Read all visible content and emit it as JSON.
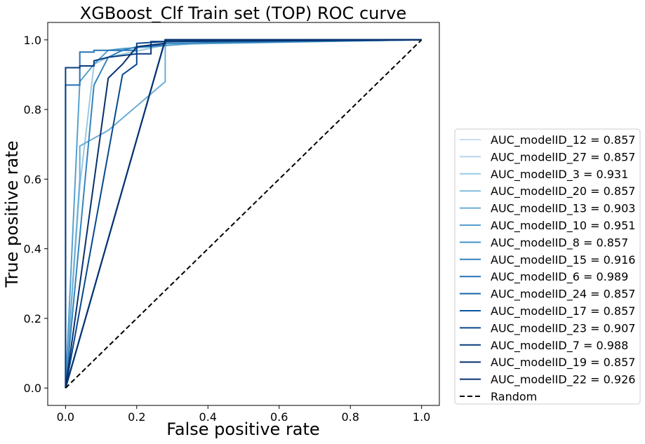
{
  "chart_data": {
    "type": "line",
    "title": "XGBoost_Clf Train set (TOP) ROC curve",
    "xlabel": "False positive rate",
    "ylabel": "True positive rate",
    "xlim": [
      -0.05,
      1.05
    ],
    "ylim": [
      -0.05,
      1.05
    ],
    "x_ticks": [
      "0.0",
      "0.2",
      "0.4",
      "0.6",
      "0.8",
      "1.0"
    ],
    "y_ticks": [
      "0.0",
      "0.2",
      "0.4",
      "0.6",
      "0.8",
      "1.0"
    ],
    "grid": false,
    "legend_position": "right, outside plot",
    "series": [
      {
        "name": "AUC_modelID_12 = 0.857",
        "color": "#c6dbef",
        "points": [
          [
            0,
            0
          ],
          [
            0.28,
            1.0
          ],
          [
            1,
            1
          ]
        ]
      },
      {
        "name": "AUC_modelID_27 = 0.857",
        "color": "#b5d4e9",
        "points": [
          [
            0,
            0
          ],
          [
            0.28,
            1.0
          ],
          [
            1,
            1
          ]
        ]
      },
      {
        "name": "AUC_modelID_3 = 0.931",
        "color": "#9cc9e1",
        "points": [
          [
            0,
            0
          ],
          [
            0.04,
            0.58
          ],
          [
            0.08,
            0.93
          ],
          [
            0.12,
            0.95
          ],
          [
            0.28,
            0.985
          ],
          [
            0.56,
            0.995
          ],
          [
            1,
            1
          ]
        ]
      },
      {
        "name": "AUC_modelID_20 = 0.857",
        "color": "#82bbdb",
        "points": [
          [
            0,
            0
          ],
          [
            0.28,
            1.0
          ],
          [
            1,
            1
          ]
        ]
      },
      {
        "name": "AUC_modelID_13 = 0.903",
        "color": "#6aaed6",
        "points": [
          [
            0,
            0
          ],
          [
            0.04,
            0.6
          ],
          [
            0.04,
            0.695
          ],
          [
            0.12,
            0.74
          ],
          [
            0.28,
            0.88
          ],
          [
            0.28,
            0.99
          ],
          [
            0.44,
            0.99
          ],
          [
            1,
            1
          ]
        ]
      },
      {
        "name": "AUC_modelID_10 = 0.951",
        "color": "#56a0ce",
        "points": [
          [
            0,
            0
          ],
          [
            0.04,
            0.88
          ],
          [
            0.08,
            0.93
          ],
          [
            0.12,
            0.97
          ],
          [
            0.16,
            0.975
          ],
          [
            0.24,
            0.98
          ],
          [
            0.36,
            0.99
          ],
          [
            1,
            1
          ]
        ]
      },
      {
        "name": "AUC_modelID_8 = 0.857",
        "color": "#4392c6",
        "points": [
          [
            0,
            0
          ],
          [
            0.28,
            1.0
          ],
          [
            1,
            1
          ]
        ]
      },
      {
        "name": "AUC_modelID_15 = 0.916",
        "color": "#3383be",
        "points": [
          [
            0,
            0
          ],
          [
            0.08,
            0.87
          ],
          [
            0.12,
            0.95
          ],
          [
            0.16,
            0.97
          ],
          [
            0.2,
            0.98
          ],
          [
            0.28,
            0.99
          ],
          [
            1,
            1
          ]
        ]
      },
      {
        "name": "AUC_modelID_6 = 0.989",
        "color": "#2473b6",
        "points": [
          [
            0,
            0
          ],
          [
            0,
            0.87
          ],
          [
            0.04,
            0.87
          ],
          [
            0.04,
            0.965
          ],
          [
            0.08,
            0.965
          ],
          [
            0.08,
            0.97
          ],
          [
            0.2,
            0.97
          ],
          [
            0.2,
            0.98
          ],
          [
            0.28,
            0.985
          ],
          [
            0.28,
            0.995
          ],
          [
            1,
            1
          ]
        ]
      },
      {
        "name": "AUC_modelID_24 = 0.857",
        "color": "#1764ab",
        "points": [
          [
            0,
            0
          ],
          [
            0.28,
            1.0
          ],
          [
            1,
            1
          ]
        ]
      },
      {
        "name": "AUC_modelID_17 = 0.857",
        "color": "#0c56a0",
        "points": [
          [
            0,
            0
          ],
          [
            0.28,
            1.0
          ],
          [
            1,
            1
          ]
        ]
      },
      {
        "name": "AUC_modelID_23 = 0.907",
        "color": "#08488e",
        "points": [
          [
            0,
            0
          ],
          [
            0.16,
            0.9
          ],
          [
            0.2,
            0.93
          ],
          [
            0.2,
            0.99
          ],
          [
            0.28,
            0.995
          ],
          [
            1,
            1
          ]
        ]
      },
      {
        "name": "AUC_modelID_7 = 0.988",
        "color": "#083d7f",
        "points": [
          [
            0,
            0
          ],
          [
            0,
            0.92
          ],
          [
            0.04,
            0.92
          ],
          [
            0.04,
            0.925
          ],
          [
            0.08,
            0.925
          ],
          [
            0.08,
            0.94
          ],
          [
            0.12,
            0.95
          ],
          [
            0.2,
            0.96
          ],
          [
            0.24,
            0.96
          ],
          [
            0.24,
            0.995
          ],
          [
            1,
            1
          ]
        ]
      },
      {
        "name": "AUC_modelID_19 = 0.857",
        "color": "#08326e",
        "points": [
          [
            0,
            0
          ],
          [
            0.28,
            1.0
          ],
          [
            1,
            1
          ]
        ]
      },
      {
        "name": "AUC_modelID_22 = 0.926",
        "color": "#08306b",
        "points": [
          [
            0,
            0
          ],
          [
            0.12,
            0.89
          ],
          [
            0.16,
            0.93
          ],
          [
            0.2,
            0.98
          ],
          [
            0.28,
            0.99
          ],
          [
            0.28,
            1.0
          ],
          [
            1,
            1
          ]
        ]
      }
    ],
    "baseline": {
      "name": "Random",
      "color": "#000000",
      "style": "dashed",
      "points": [
        [
          0,
          0
        ],
        [
          1,
          1
        ]
      ]
    }
  }
}
